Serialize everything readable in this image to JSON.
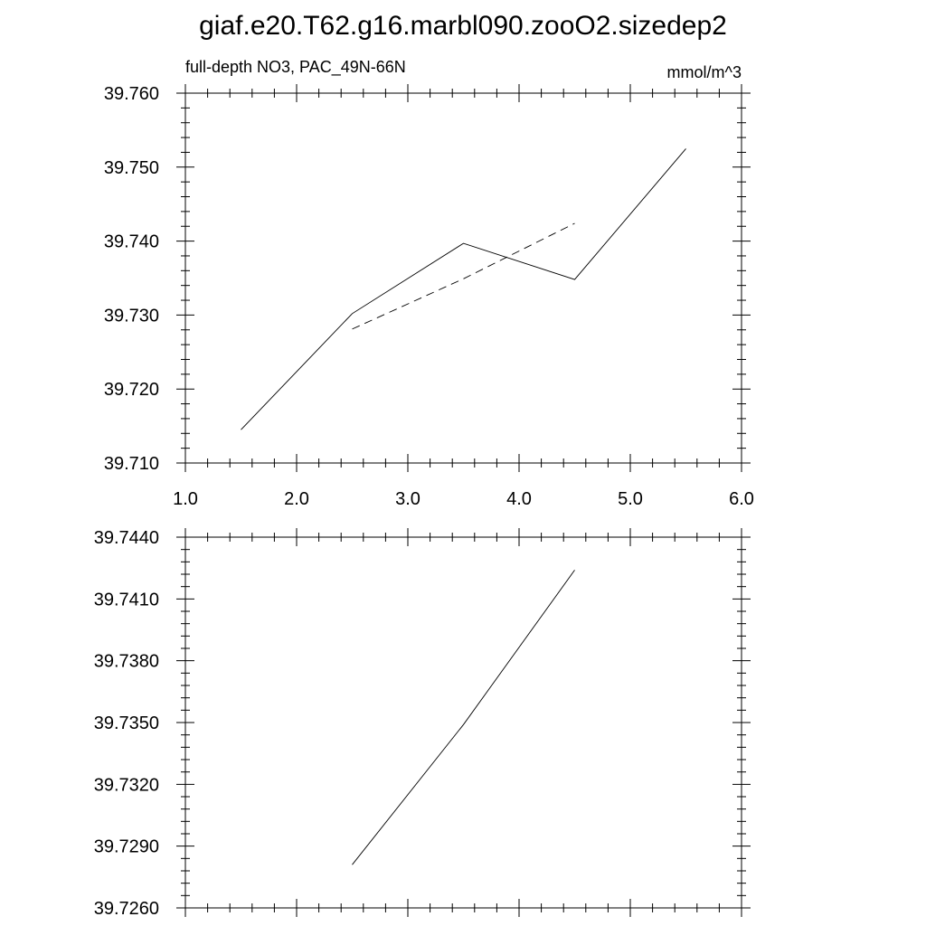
{
  "figure": {
    "title": "giaf.e20.T62.g16.marbl090.zooO2.sizedep2"
  },
  "chart_data": [
    {
      "type": "line",
      "title": "",
      "left_label": "full-depth NO3, PAC_49N-66N",
      "right_label": "mmol/m^3",
      "xlabel": "",
      "ylabel": "",
      "xlim": [
        1.0,
        6.0
      ],
      "ylim": [
        39.71,
        39.76
      ],
      "x_ticks": [
        1.0,
        2.0,
        3.0,
        4.0,
        5.0,
        6.0
      ],
      "x_tick_labels": [
        "1.0",
        "2.0",
        "3.0",
        "4.0",
        "5.0",
        "6.0"
      ],
      "y_ticks": [
        39.71,
        39.72,
        39.73,
        39.74,
        39.75,
        39.76
      ],
      "y_tick_labels": [
        "39.710",
        "39.720",
        "39.730",
        "39.740",
        "39.750",
        "39.760"
      ],
      "grid": false,
      "series": [
        {
          "style": "solid",
          "color": "#000000",
          "x": [
            1.5,
            2.5,
            3.5,
            4.5,
            5.5
          ],
          "y": [
            39.7145,
            39.7302,
            39.7397,
            39.7348,
            39.7525
          ]
        },
        {
          "style": "dashed",
          "color": "#000000",
          "x": [
            2.5,
            3.5,
            4.5
          ],
          "y": [
            39.7281,
            39.7349,
            39.7424
          ]
        }
      ]
    },
    {
      "type": "line",
      "title": "",
      "xlabel": "",
      "ylabel": "",
      "xlim": [
        1.0,
        6.0
      ],
      "ylim": [
        39.726,
        39.744
      ],
      "x_ticks": [
        1.0,
        2.0,
        3.0,
        4.0,
        5.0,
        6.0
      ],
      "y_ticks": [
        39.726,
        39.729,
        39.732,
        39.735,
        39.738,
        39.741,
        39.744
      ],
      "y_tick_labels": [
        "39.7260",
        "39.7290",
        "39.7320",
        "39.7350",
        "39.7380",
        "39.7410",
        "39.7440"
      ],
      "grid": false,
      "series": [
        {
          "style": "solid",
          "color": "#000000",
          "x": [
            2.5,
            3.5,
            4.5
          ],
          "y": [
            39.7281,
            39.7349,
            39.7424
          ]
        }
      ]
    }
  ]
}
